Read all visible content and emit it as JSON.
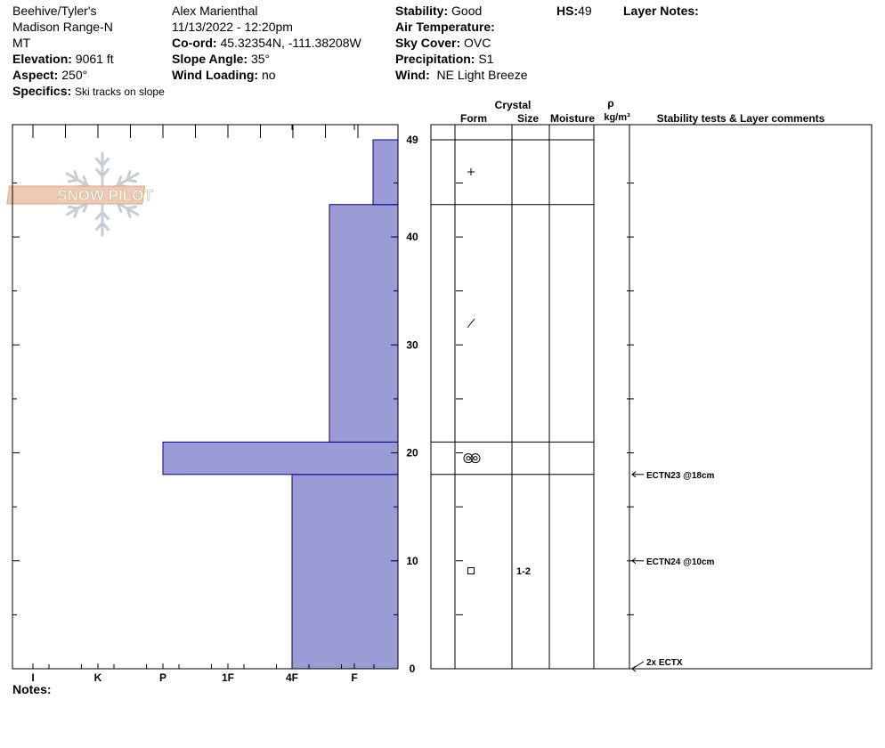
{
  "header": {
    "location": "Beehive/Tyler's",
    "range": "Madison Range-N",
    "state": "MT",
    "elevation_label": "Elevation:",
    "elevation_value": "9061 ft",
    "aspect_label": "Aspect:",
    "aspect_value": "250°",
    "specifics_label": "Specifics:",
    "specifics_value": "Ski tracks on slope",
    "observer": "Alex Marienthal",
    "datetime": "11/13/2022 - 12:20pm",
    "coord_label": "Co-ord:",
    "coord_value": "45.32354N, -111.38208W",
    "slope_label": "Slope Angle:",
    "slope_value": "35°",
    "wind_loading_label": "Wind Loading:",
    "wind_loading_value": "no",
    "stability_label": "Stability:",
    "stability_value": "Good",
    "air_temp_label": "Air Temperature:",
    "air_temp_value": "",
    "sky_label": "Sky Cover:",
    "sky_value": "OVC",
    "precip_label": "Precipitation:",
    "precip_value": "S1",
    "wind_label": "Wind:",
    "wind_value": "NE Light Breeze",
    "hs_label": "HS:",
    "hs_value": "49",
    "layer_notes_label": "Layer Notes:"
  },
  "logo": {
    "text": "SNOW PILOT"
  },
  "columns": {
    "crystal": "Crystal",
    "form": "Form",
    "size": "Size",
    "moisture": "Moisture",
    "rho": "ρ",
    "density_unit": "kg/m³",
    "comments": "Stability tests & Layer comments"
  },
  "notes_label": "Notes:",
  "chart_data": {
    "type": "bar",
    "subtype": "snow-profile-hardness",
    "hardness_scale": [
      "I",
      "K",
      "P",
      "1F",
      "4F",
      "F"
    ],
    "hardness_axis_order": "I at left, F at right",
    "y_axis": {
      "label": "",
      "range": [
        0,
        49
      ],
      "ticks": [
        0,
        10,
        20,
        30,
        40,
        49
      ],
      "unit": "cm"
    },
    "layers": [
      {
        "bottom": 0,
        "top": 18,
        "hardness": "4F",
        "form": "square",
        "size": "1-2"
      },
      {
        "bottom": 18,
        "top": 21,
        "hardness": "P",
        "form": "rounded-polycrystals",
        "size": ""
      },
      {
        "bottom": 21,
        "top": 43,
        "hardness": "4F-F",
        "form": "decomposing-fragments",
        "size": ""
      },
      {
        "bottom": 43,
        "top": 49,
        "hardness": "F",
        "form": "precipitation-plus",
        "size": ""
      }
    ],
    "layer_bar_ends": [
      4.0,
      2.0,
      4.6,
      5.3
    ],
    "stability_tests": [
      {
        "depth": 18,
        "text": "ECTN23 @18cm"
      },
      {
        "depth": 10,
        "text": "ECTN24 @10cm"
      },
      {
        "depth": 0,
        "text": "2x ECTX"
      }
    ],
    "bar_color": "#9b9bd6",
    "bar_outline": "#00008b"
  }
}
